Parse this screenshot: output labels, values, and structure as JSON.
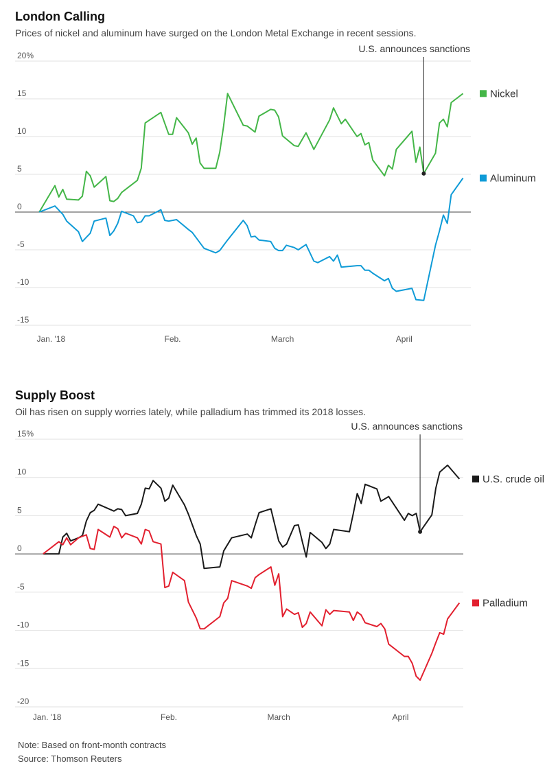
{
  "chart_data": [
    {
      "type": "line",
      "title": "London Calling",
      "subtitle": "Prices of nickel and aluminum have surged on the London Metal Exchange in recent sessions.",
      "xlim": [
        -5,
        108
      ],
      "xticks": [
        {
          "value": 1,
          "label": "Jan. '18"
        },
        {
          "value": 32,
          "label": "Feb."
        },
        {
          "value": 60,
          "label": "March"
        },
        {
          "value": 91,
          "label": "April"
        }
      ],
      "ylim": [
        -15,
        20
      ],
      "yticks": [
        {
          "value": 20,
          "label": "20%"
        },
        15,
        10,
        5,
        0,
        -5,
        -10,
        -15
      ],
      "grid": true,
      "annotations": [
        {
          "text": "U.S. announces sanctions",
          "x": 96,
          "y": 5.1
        }
      ],
      "series": [
        {
          "name": "Nickel",
          "color": "#44b648",
          "x": [
            -2,
            2,
            3,
            4,
            5,
            8,
            9,
            10,
            11,
            12,
            15,
            16,
            17,
            18,
            19,
            23,
            24,
            25,
            29,
            31,
            32,
            33,
            36,
            37,
            38,
            39,
            40,
            43,
            44,
            45,
            46,
            50,
            51,
            53,
            54,
            57,
            58,
            59,
            60,
            63,
            64,
            66,
            67,
            68,
            72,
            73,
            75,
            76,
            79,
            80,
            81,
            82,
            83,
            86,
            87,
            88,
            89,
            93,
            94,
            95,
            96,
            99,
            100,
            101,
            102,
            103,
            106
          ],
          "values": [
            0,
            3.5,
            2,
            3,
            1.7,
            1.6,
            2.1,
            5.4,
            4.8,
            3.3,
            4.7,
            1.5,
            1.4,
            1.8,
            2.6,
            4.2,
            5.8,
            11.8,
            13.2,
            10.3,
            10.3,
            12.5,
            10.5,
            9,
            9.8,
            6.5,
            5.8,
            5.8,
            7.9,
            11.4,
            15.7,
            11.5,
            11.4,
            10.6,
            12.7,
            13.6,
            13.5,
            12.6,
            10.1,
            8.8,
            8.7,
            10.5,
            9.4,
            8.3,
            12.2,
            13.8,
            11.7,
            12.3,
            10,
            10.4,
            8.9,
            9.2,
            6.9,
            4.8,
            6.2,
            5.7,
            8.3,
            10.7,
            6.6,
            8.6,
            5.1,
            7.8,
            11.8,
            12.3,
            11.3,
            14.5,
            15.7
          ]
        },
        {
          "name": "Aluminum",
          "color": "#0f9bd7",
          "x": [
            -2,
            2,
            4,
            5,
            8,
            9,
            11,
            12,
            15,
            16,
            17,
            18,
            19,
            22,
            23,
            24,
            25,
            26,
            29,
            30,
            31,
            33,
            36,
            37,
            40,
            43,
            44,
            46,
            50,
            51,
            52,
            53,
            54,
            57,
            58,
            59,
            60,
            61,
            63,
            64,
            66,
            68,
            69,
            72,
            73,
            74,
            75,
            79,
            80,
            81,
            82,
            83,
            86,
            87,
            88,
            89,
            93,
            94,
            96,
            99,
            100,
            101,
            102,
            103,
            106
          ],
          "values": [
            0,
            0.8,
            -0.3,
            -1.2,
            -2.6,
            -3.9,
            -2.8,
            -1.2,
            -0.8,
            -3.1,
            -2.5,
            -1.5,
            0.1,
            -0.5,
            -1.4,
            -1.3,
            -0.5,
            -0.5,
            0.3,
            -1.1,
            -1.2,
            -1,
            -2.3,
            -2.7,
            -4.8,
            -5.4,
            -5.1,
            -3.7,
            -1.1,
            -1.8,
            -3.3,
            -3.2,
            -3.7,
            -3.9,
            -4.8,
            -5.1,
            -5.1,
            -4.4,
            -4.7,
            -5,
            -4.3,
            -6.5,
            -6.7,
            -5.9,
            -6.5,
            -5.7,
            -7.3,
            -7.1,
            -7.1,
            -7.7,
            -7.7,
            -8.1,
            -9.1,
            -8.8,
            -10.1,
            -10.5,
            -10.1,
            -11.6,
            -11.7,
            -4.4,
            -2.5,
            -0.4,
            -1.5,
            2.3,
            4.5
          ]
        }
      ]
    },
    {
      "type": "line",
      "title": "Supply Boost",
      "subtitle": "Oil has risen on supply worries lately, while palladium has trimmed its 2018 losses.",
      "xlim": [
        -4,
        107
      ],
      "xticks": [
        {
          "value": 1,
          "label": "Jan. '18"
        },
        {
          "value": 32,
          "label": "Feb."
        },
        {
          "value": 60,
          "label": "March"
        },
        {
          "value": 91,
          "label": "April"
        }
      ],
      "ylim": [
        -20,
        15
      ],
      "yticks": [
        {
          "value": 15,
          "label": "15%"
        },
        10,
        5,
        0,
        -5,
        -10,
        -15,
        -20
      ],
      "grid": true,
      "annotations": [
        {
          "text": "U.S. announces sanctions",
          "x": 96,
          "y": 2.9
        }
      ],
      "series": [
        {
          "name": "U.S. crude oil",
          "color": "#1a1a1a",
          "x": [
            0,
            4,
            5,
            6,
            7,
            9,
            10,
            11,
            12,
            13,
            14,
            18,
            19,
            20,
            21,
            24,
            25,
            26,
            27,
            28,
            30,
            31,
            32,
            33,
            36,
            37,
            39,
            40,
            41,
            45,
            46,
            48,
            52,
            53,
            54,
            55,
            58,
            59,
            60,
            61,
            62,
            64,
            65,
            66,
            67,
            68,
            71,
            72,
            73,
            74,
            78,
            79,
            80,
            81,
            82,
            85,
            86,
            88,
            92,
            93,
            94,
            95,
            96,
            99,
            100,
            101,
            103,
            106
          ],
          "values": [
            0,
            0,
            2.2,
            2.7,
            1.7,
            2.1,
            2.4,
            4.3,
            5.4,
            5.7,
            6.5,
            5.6,
            5.9,
            5.8,
            5,
            5.3,
            6.5,
            8.6,
            8.5,
            9.6,
            8.6,
            6.9,
            7.3,
            9,
            6.4,
            5.2,
            2.4,
            1.3,
            -1.9,
            -1.7,
            0.4,
            2.1,
            2.6,
            2.1,
            3.8,
            5.4,
            5.9,
            3.8,
            1.7,
            0.9,
            1.3,
            3.7,
            3.8,
            1.6,
            -0.4,
            2.8,
            1.5,
            0.7,
            1.3,
            3.2,
            2.9,
            5.3,
            7.9,
            6.6,
            9.1,
            8.5,
            6.9,
            7.5,
            4.4,
            5.3,
            5,
            5.3,
            2.9,
            5.1,
            8.6,
            10.7,
            11.6,
            9.8
          ]
        },
        {
          "name": "Palladium",
          "color": "#e2202f",
          "x": [
            0,
            4,
            5,
            6,
            7,
            9,
            10,
            11,
            12,
            13,
            14,
            17,
            18,
            19,
            20,
            21,
            24,
            25,
            26,
            27,
            28,
            30,
            31,
            32,
            33,
            36,
            37,
            39,
            40,
            41,
            45,
            46,
            47,
            48,
            52,
            53,
            54,
            55,
            58,
            59,
            60,
            61,
            62,
            64,
            65,
            66,
            67,
            68,
            71,
            72,
            73,
            74,
            78,
            79,
            80,
            81,
            82,
            85,
            86,
            87,
            88,
            92,
            93,
            94,
            95,
            96,
            99,
            100,
            101,
            102,
            103,
            106
          ],
          "values": [
            0,
            1.6,
            1.2,
            2.1,
            1.2,
            2.1,
            2.3,
            2.5,
            0.7,
            0.6,
            3.2,
            2.2,
            3.6,
            3.3,
            2.1,
            2.7,
            2.1,
            1.3,
            3.2,
            3,
            1.6,
            1.3,
            -4.4,
            -4.2,
            -2.4,
            -3.5,
            -6.3,
            -8.4,
            -9.8,
            -9.8,
            -8.2,
            -6.4,
            -5.8,
            -3.5,
            -4.2,
            -4.5,
            -3.1,
            -2.7,
            -1.7,
            -4.1,
            -2.6,
            -8.2,
            -7.2,
            -7.9,
            -7.7,
            -9.6,
            -9.1,
            -7.6,
            -9.4,
            -7.3,
            -7.9,
            -7.4,
            -7.6,
            -8.7,
            -7.6,
            -8,
            -9,
            -9.5,
            -9.1,
            -9.8,
            -11.8,
            -13.4,
            -13.4,
            -14.3,
            -16,
            -16.5,
            -13,
            -11.6,
            -10.3,
            -10.5,
            -8.5,
            -6.4
          ]
        }
      ]
    }
  ],
  "notes": [
    "Note: Based on front-month contracts",
    "Source: Thomson Reuters"
  ]
}
